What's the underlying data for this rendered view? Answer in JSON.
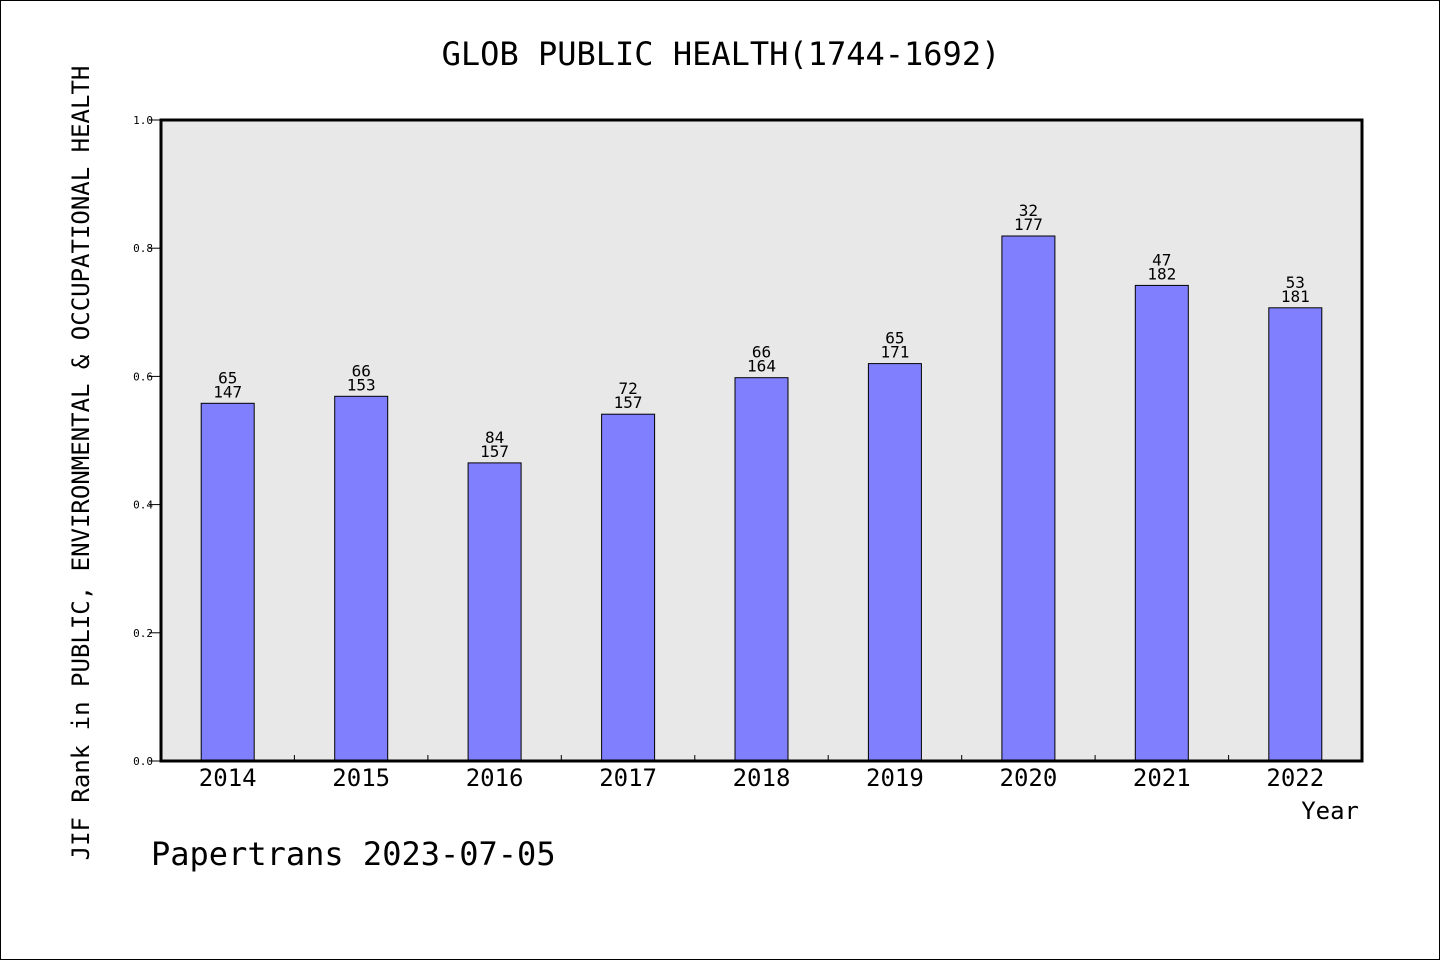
{
  "chart_data": {
    "type": "bar",
    "title": "GLOB PUBLIC HEALTH(1744-1692)",
    "xlabel": "Year",
    "ylabel": "JIF Rank in PUBLIC, ENVIRONMENTAL & OCCUPATIONAL HEALTH",
    "categories": [
      "2014",
      "2015",
      "2016",
      "2017",
      "2018",
      "2019",
      "2020",
      "2021",
      "2022"
    ],
    "values": [
      0.558,
      0.569,
      0.465,
      0.541,
      0.598,
      0.62,
      0.819,
      0.742,
      0.707
    ],
    "labels_top": [
      "65",
      "66",
      "84",
      "72",
      "66",
      "65",
      "32",
      "47",
      "53"
    ],
    "labels_bottom": [
      "147",
      "153",
      "157",
      "157",
      "164",
      "171",
      "177",
      "182",
      "181"
    ],
    "ylim": [
      0.0,
      1.0
    ],
    "yticks": [
      "0.0",
      "0.2",
      "0.4",
      "0.6",
      "0.8",
      "1.0"
    ],
    "grid": false,
    "colors": {
      "bar": "#8080ff",
      "plot_background": "#e8e8e8"
    }
  },
  "footer": "Papertrans 2023-07-05"
}
